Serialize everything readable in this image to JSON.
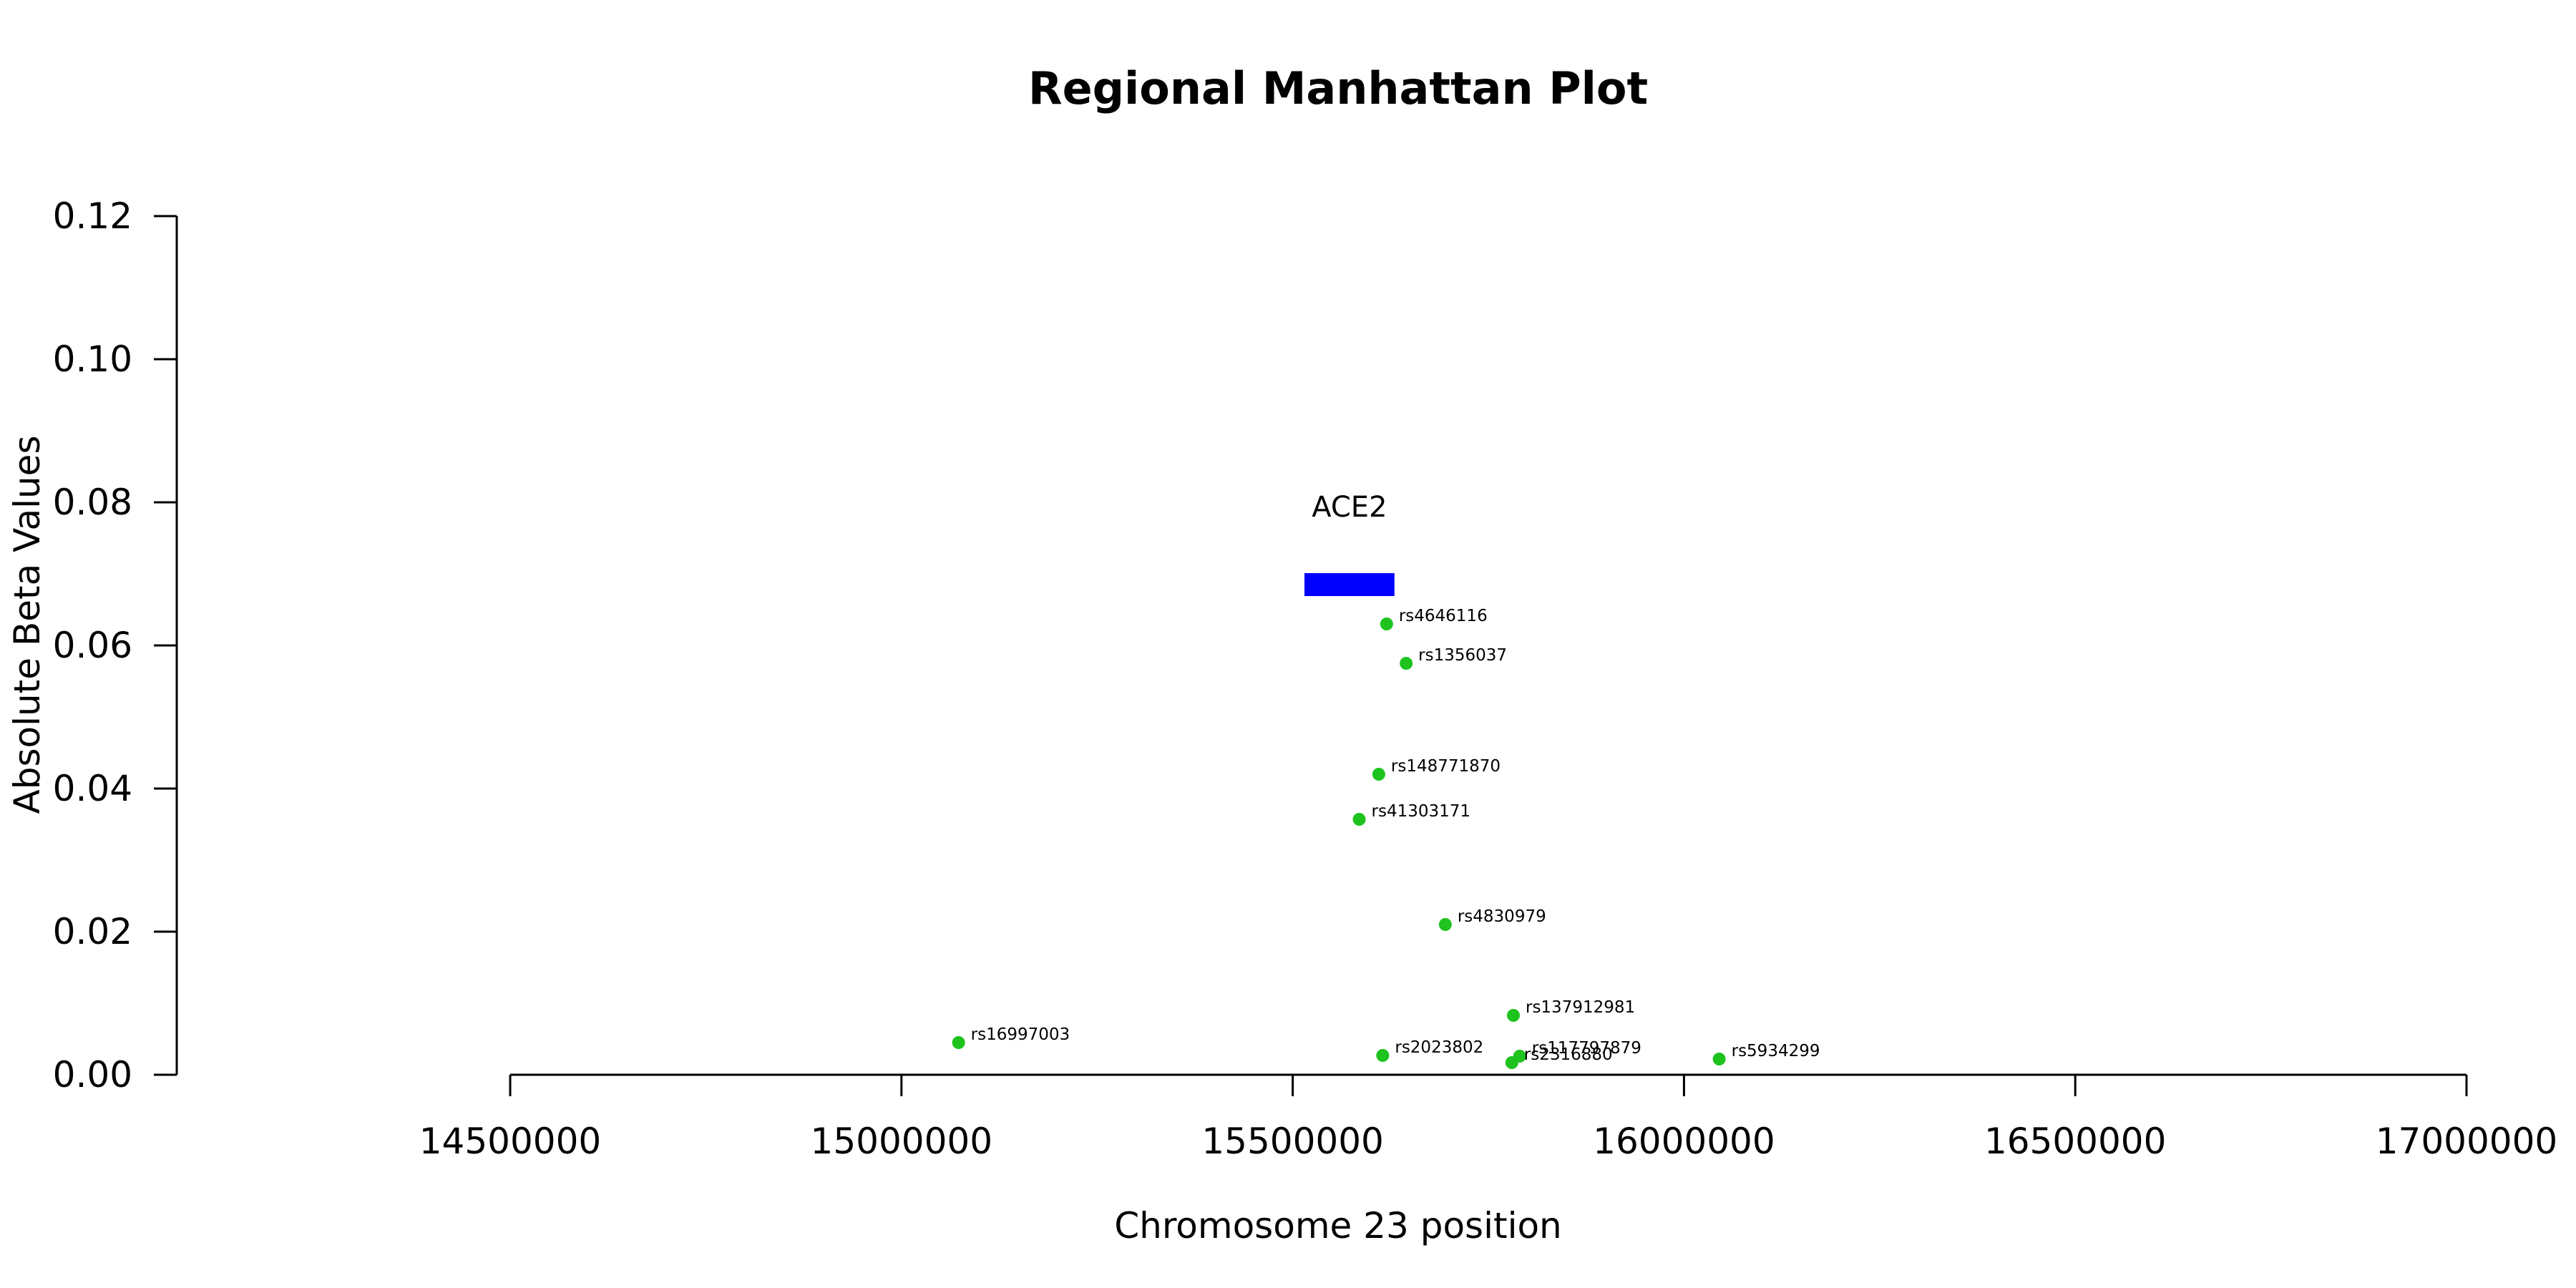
{
  "chart_data": {
    "type": "scatter",
    "title": "Regional Manhattan Plot",
    "xlabel": "Chromosome 23 position",
    "ylabel": "Absolute Beta Values",
    "xlim": [
      14500000,
      17000000
    ],
    "ylim": [
      0,
      0.12
    ],
    "x_ticks": [
      14500000,
      15000000,
      15500000,
      16000000,
      16500000,
      17000000
    ],
    "x_tick_labels": [
      "14500000",
      "15000000",
      "15500000",
      "16000000",
      "16500000",
      "17000000"
    ],
    "y_ticks": [
      0,
      0.02,
      0.04,
      0.06,
      0.08,
      0.1,
      0.12
    ],
    "y_tick_labels": [
      "0.00",
      "0.02",
      "0.04",
      "0.06",
      "0.08",
      "0.10",
      "0.12"
    ],
    "grid": false,
    "point_color": "#1ec31e",
    "gene": {
      "name": "ACE2",
      "start": 15515000,
      "end": 15630000,
      "y": 0.0685,
      "color": "#0000ff"
    },
    "points": [
      {
        "label": "rs4646116",
        "x": 15620000,
        "y": 0.063
      },
      {
        "label": "rs1356037",
        "x": 15645000,
        "y": 0.0575
      },
      {
        "label": "rs148771870",
        "x": 15610000,
        "y": 0.042
      },
      {
        "label": "rs41303171",
        "x": 15585000,
        "y": 0.0357
      },
      {
        "label": "rs4830979",
        "x": 15695000,
        "y": 0.021
      },
      {
        "label": "rs137912981",
        "x": 15782000,
        "y": 0.0083
      },
      {
        "label": "rs16997003",
        "x": 15073000,
        "y": 0.0045
      },
      {
        "label": "rs2023802",
        "x": 15615000,
        "y": 0.0027
      },
      {
        "label": "rs117797879",
        "x": 15790000,
        "y": 0.0026
      },
      {
        "label": "rs2316880",
        "x": 15780000,
        "y": 0.0017
      },
      {
        "label": "rs5934299",
        "x": 16045000,
        "y": 0.0022
      }
    ]
  }
}
